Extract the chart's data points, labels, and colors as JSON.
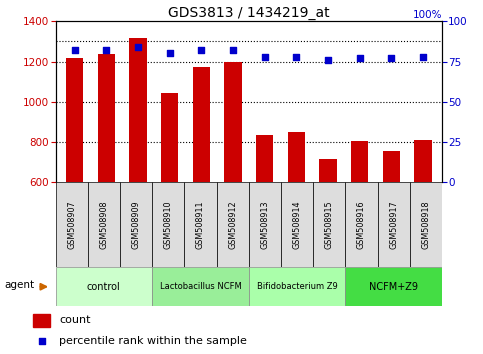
{
  "title": "GDS3813 / 1434219_at",
  "samples": [
    "GSM508907",
    "GSM508908",
    "GSM508909",
    "GSM508910",
    "GSM508911",
    "GSM508912",
    "GSM508913",
    "GSM508914",
    "GSM508915",
    "GSM508916",
    "GSM508917",
    "GSM508918"
  ],
  "counts": [
    1215,
    1235,
    1315,
    1045,
    1175,
    1200,
    835,
    850,
    715,
    805,
    755,
    810
  ],
  "percentile_ranks": [
    82,
    82,
    84,
    80,
    82,
    82,
    78,
    78,
    76,
    77,
    77,
    78
  ],
  "ylim_left": [
    600,
    1400
  ],
  "ylim_right": [
    0,
    100
  ],
  "yticks_left": [
    600,
    800,
    1000,
    1200,
    1400
  ],
  "yticks_right": [
    0,
    25,
    50,
    75,
    100
  ],
  "bar_color": "#cc0000",
  "dot_color": "#0000cc",
  "groups": [
    {
      "label": "control",
      "start": 0,
      "end": 3,
      "color": "#ccffcc"
    },
    {
      "label": "Lactobacillus NCFM",
      "start": 3,
      "end": 6,
      "color": "#99ee99"
    },
    {
      "label": "Bifidobacterium Z9",
      "start": 6,
      "end": 9,
      "color": "#aaffaa"
    },
    {
      "label": "NCFM+Z9",
      "start": 9,
      "end": 12,
      "color": "#44dd44"
    }
  ],
  "tick_label_color_left": "#cc0000",
  "tick_label_color_right": "#0000cc",
  "bar_color_legend": "#cc0000",
  "dot_color_legend": "#0000cc"
}
